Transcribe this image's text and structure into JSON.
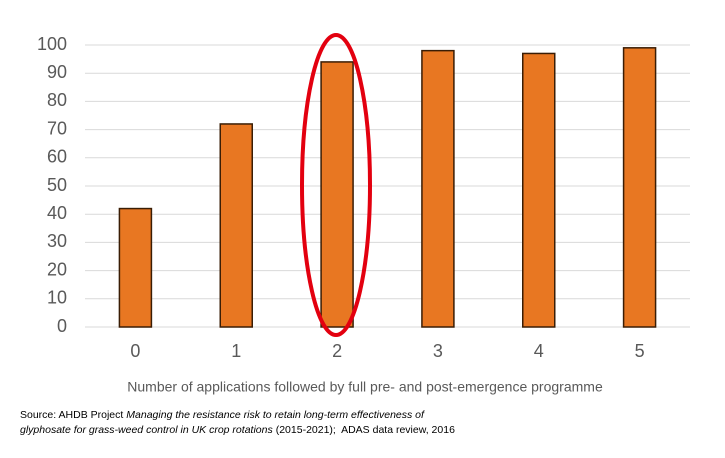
{
  "chart_data": {
    "type": "bar",
    "x_label": "Number of applications followed by full pre- and post-emergence programme",
    "categories": [
      "0",
      "1",
      "2",
      "3",
      "4",
      "5"
    ],
    "values": [
      42,
      72,
      94,
      98,
      97,
      99
    ],
    "color": "#e87722",
    "ylim": [
      0,
      100
    ],
    "yticks": [
      0,
      10,
      20,
      30,
      40,
      50,
      60,
      70,
      80,
      90,
      100
    ],
    "grid": true,
    "source": [
      [
        {
          "text": "Source: AHDB Project",
          "italic": false
        },
        {
          "text": "Managing the resistance risk to retain long-term effectiveness of",
          "italic": true
        }
      ],
      [
        {
          "text": "glyphosate for grass-weed control in UK crop rotations",
          "italic": true
        },
        {
          "text": "(2015-2021);  ADAS data review, 2016",
          "italic": false
        }
      ]
    ]
  }
}
